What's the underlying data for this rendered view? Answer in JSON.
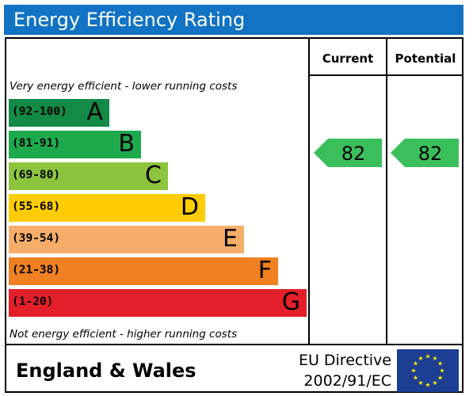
{
  "header": {
    "title": "Energy Efficiency Rating"
  },
  "columns": {
    "current": "Current",
    "potential": "Potential"
  },
  "captions": {
    "top": "Very energy efficient - lower running costs",
    "bottom": "Not energy efficient - higher running costs"
  },
  "footer": {
    "country": "England & Wales",
    "directive_line1": "EU Directive",
    "directive_line2": "2002/91/EC"
  },
  "colors": {
    "title_bar": "#1273c4",
    "A": "#138a45",
    "B": "#1fa94d",
    "C": "#8cc43e",
    "D": "#ffcc00",
    "E": "#f7ad6a",
    "F": "#ef8122",
    "G": "#e32029",
    "rating_arrow": "#3bbf5b",
    "flag": "#1c3f94",
    "stars": "#ffe600"
  },
  "chart_data": {
    "type": "bar",
    "categories": [
      "A",
      "B",
      "C",
      "D",
      "E",
      "F",
      "G"
    ],
    "range_labels": [
      "(92-100)",
      "(81-91)",
      "(69-80)",
      "(55-68)",
      "(39-54)",
      "(21-38)",
      "(1-20)"
    ],
    "current": {
      "label": "Current",
      "value": 82,
      "band": "B"
    },
    "potential": {
      "label": "Potential",
      "value": 82,
      "band": "B"
    }
  }
}
